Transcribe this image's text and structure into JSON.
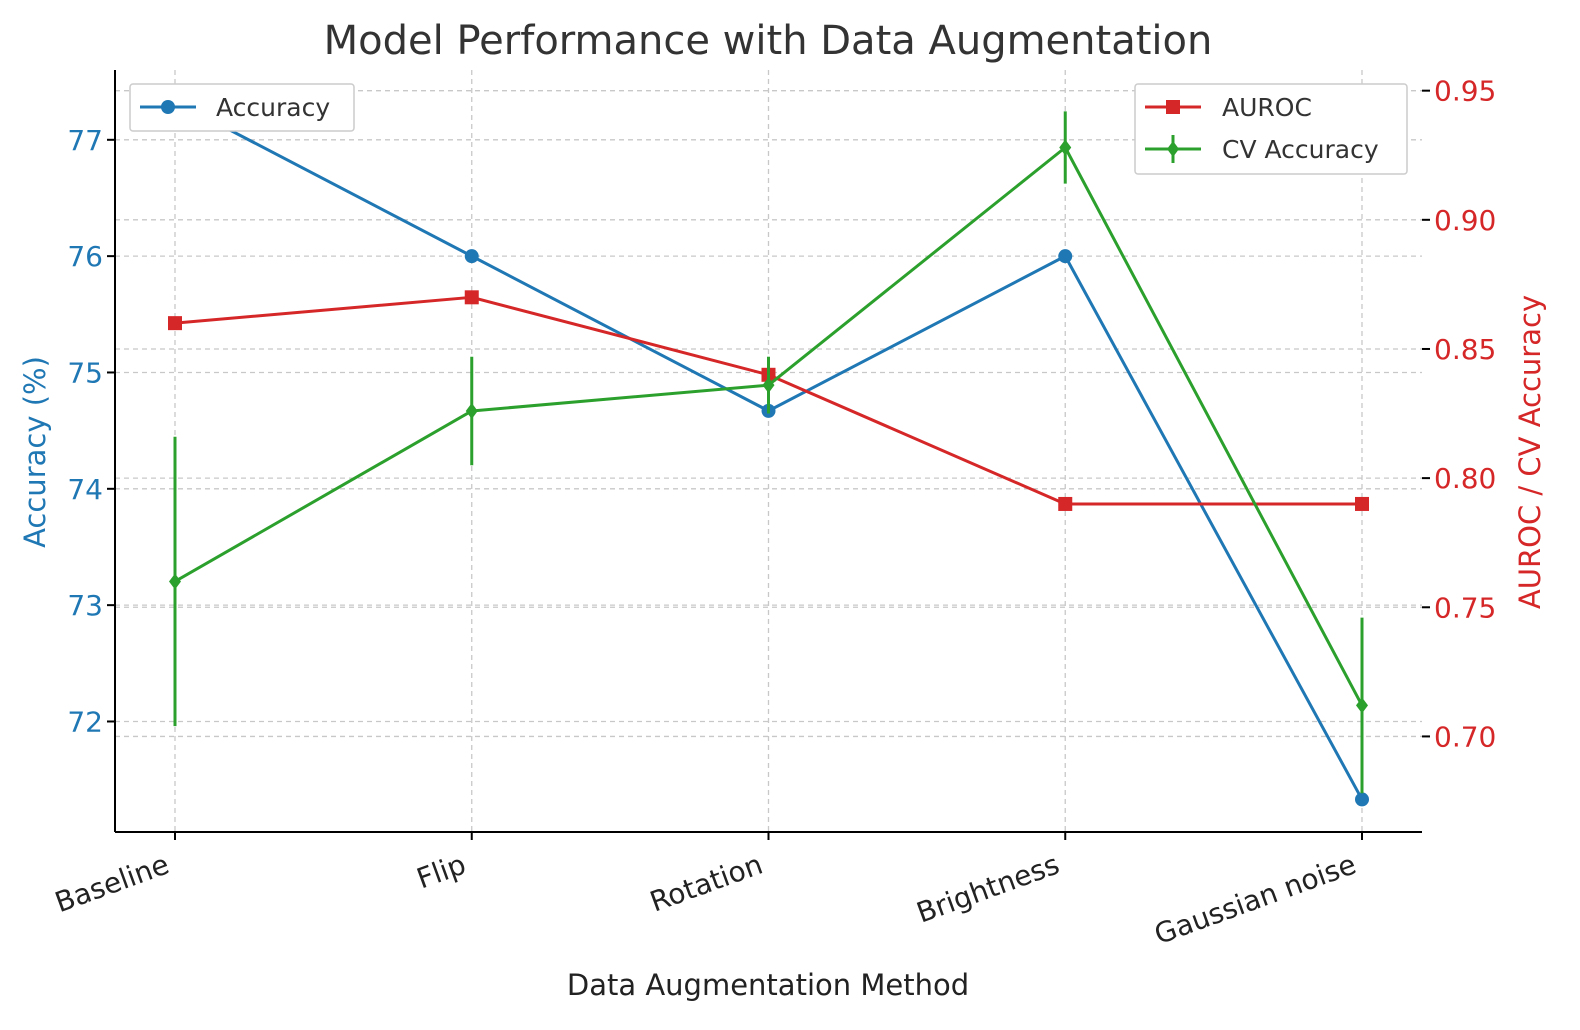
{
  "chart_data": {
    "type": "line",
    "title": "Model Performance with Data Augmentation",
    "xlabel": "Data Augmentation Method",
    "ylabel": "Accuracy (%)",
    "y2label": "AUROC / CV Accuracy",
    "categories": [
      "Baseline",
      "Flip",
      "Rotation",
      "Brightness",
      "Gaussian noise"
    ],
    "ylim": [
      71.05,
      77.6
    ],
    "yticks": [
      72,
      73,
      74,
      75,
      76,
      77
    ],
    "y2lim": [
      0.663,
      0.958
    ],
    "y2ticks": [
      0.7,
      0.75,
      0.8,
      0.85,
      0.9,
      0.95
    ],
    "y2tick_labels": [
      "0.70",
      "0.75",
      "0.80",
      "0.85",
      "0.90",
      "0.95"
    ],
    "grid": true,
    "series": [
      {
        "name": "Accuracy",
        "axis": "left",
        "marker": "circle",
        "color": "#1f77b4",
        "values": [
          77.33,
          76.0,
          74.67,
          76.0,
          71.33
        ]
      },
      {
        "name": "AUROC",
        "axis": "right",
        "marker": "square",
        "color": "#d62728",
        "values": [
          0.86,
          0.87,
          0.84,
          0.79,
          0.79
        ]
      },
      {
        "name": "CV Accuracy",
        "axis": "right",
        "marker": "diamond",
        "color": "#2ca02c",
        "values": [
          0.76,
          0.826,
          0.836,
          0.928,
          0.712
        ],
        "errors": [
          0.056,
          0.021,
          0.011,
          0.014,
          0.034
        ]
      }
    ],
    "legend_left": {
      "placement": "top-left",
      "entries": [
        "Accuracy"
      ]
    },
    "legend_right": {
      "placement": "top-right",
      "entries": [
        "AUROC",
        "CV Accuracy"
      ]
    }
  }
}
